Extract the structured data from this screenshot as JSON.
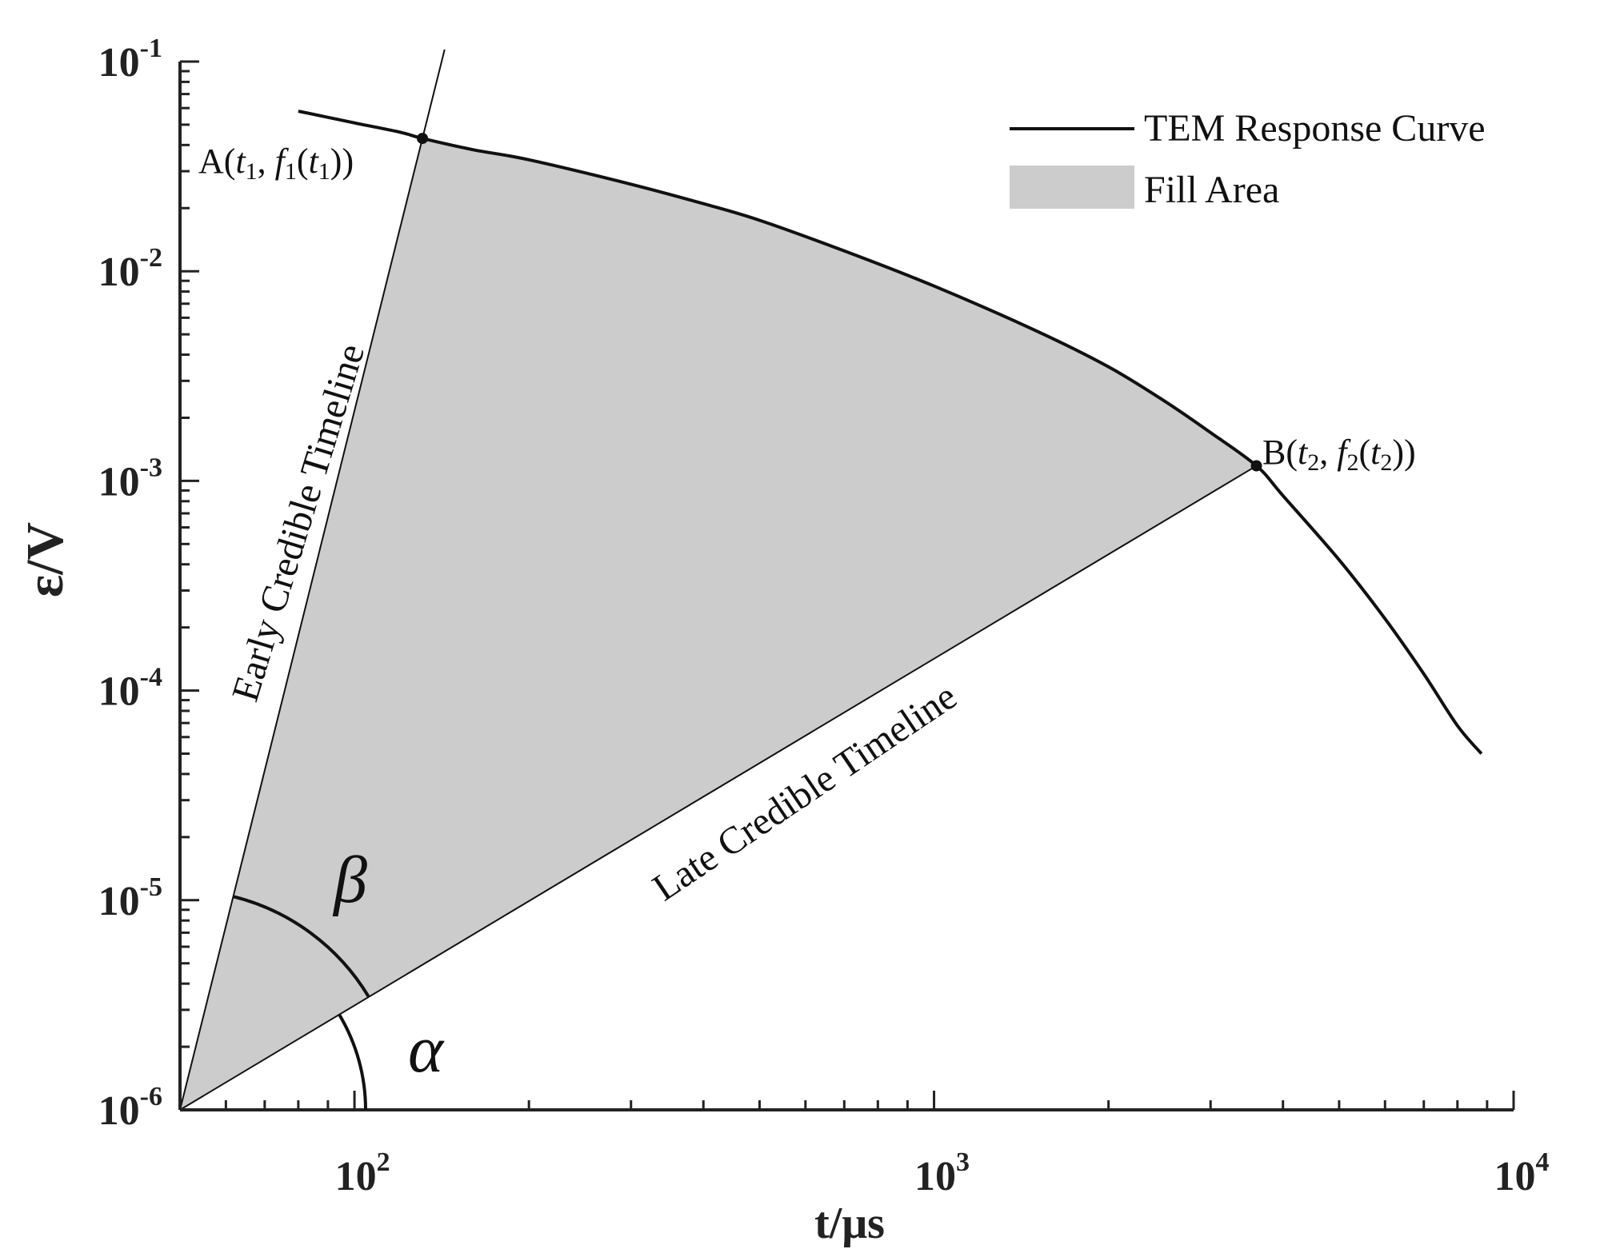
{
  "chart_data": {
    "type": "line",
    "x_scale": "log",
    "y_scale": "log",
    "xlim": [
      50,
      10000
    ],
    "ylim": [
      1e-06,
      0.1
    ],
    "xlabel": "t/μs",
    "ylabel": "ε/V",
    "x_ticks": [
      {
        "value": 100,
        "base": "10",
        "exp": "2"
      },
      {
        "value": 1000,
        "base": "10",
        "exp": "3"
      },
      {
        "value": 10000,
        "base": "10",
        "exp": "4"
      }
    ],
    "y_ticks": [
      {
        "value": 1e-06,
        "base": "10",
        "exp": "-6"
      },
      {
        "value": 1e-05,
        "base": "10",
        "exp": "-5"
      },
      {
        "value": 0.0001,
        "base": "10",
        "exp": "-4"
      },
      {
        "value": 0.001,
        "base": "10",
        "exp": "-3"
      },
      {
        "value": 0.01,
        "base": "10",
        "exp": "-2"
      },
      {
        "value": 0.1,
        "base": "10",
        "exp": "-1"
      }
    ],
    "legend": {
      "placement": "top-right",
      "entries": [
        {
          "label": "TEM Response Curve",
          "kind": "line",
          "color": "#111111"
        },
        {
          "label": "Fill Area",
          "kind": "patch",
          "color": "#cccccc"
        }
      ]
    },
    "series": [
      {
        "name": "TEM Response Curve",
        "color": "#111111",
        "x": [
          80,
          100,
          120,
          131,
          160,
          200,
          300,
          400,
          500,
          700,
          1000,
          1500,
          2000,
          2500,
          3000,
          3600,
          4000,
          5000,
          6000,
          7000,
          8000,
          8800
        ],
        "y": [
          0.058,
          0.051,
          0.046,
          0.043,
          0.038,
          0.034,
          0.026,
          0.021,
          0.0175,
          0.0125,
          0.0085,
          0.0052,
          0.0035,
          0.0024,
          0.0017,
          0.00118,
          0.00085,
          0.00042,
          0.00022,
          0.00012,
          6.8e-05,
          5e-05
        ]
      }
    ],
    "fill_area": {
      "color": "#cccccc",
      "vertex": {
        "x": 50,
        "y": 1e-06
      },
      "start_point": "A",
      "end_point": "B"
    },
    "lines": [
      {
        "name": "early-credible-timeline",
        "label": "Early Credible Timeline",
        "from": {
          "x": 50,
          "y": 1e-06
        },
        "to": {
          "x": 131,
          "y": 0.043
        }
      },
      {
        "name": "late-credible-timeline",
        "label": "Late Credible Timeline",
        "from": {
          "x": 50,
          "y": 1e-06
        },
        "to": {
          "x": 3600,
          "y": 0.00118
        }
      }
    ],
    "points": [
      {
        "name": "A",
        "x": 131,
        "y": 0.043,
        "label_prefix": "A(",
        "t": "t",
        "t_sub": "1",
        "f": "f",
        "f_sub": "1",
        "label_suffix": "))"
      },
      {
        "name": "B",
        "x": 3600,
        "y": 0.00118,
        "label_prefix": "B(",
        "t": "t",
        "t_sub": "2",
        "f": "f",
        "f_sub": "2",
        "label_suffix": "))"
      }
    ],
    "angles": {
      "alpha": "α",
      "beta": "β"
    },
    "grid": false
  }
}
